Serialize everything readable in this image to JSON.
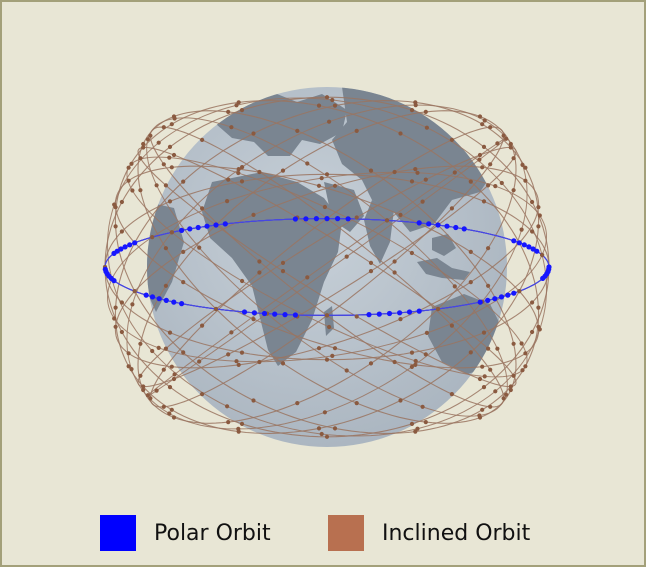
{
  "legend": {
    "polar": {
      "label": "Polar Orbit",
      "color": "#0000ff"
    },
    "inclined": {
      "label": "Inclined Orbit",
      "color": "#b87050"
    }
  },
  "colors": {
    "background": "#e8e6d5",
    "frame_border": "#a3a07a",
    "globe_ocean": "#b9c3cc",
    "globe_land": "#7a8591",
    "polar_track": "#4848e0",
    "inclined_track": "#9a7460",
    "satellite_polar": "#1616ff",
    "satellite_inclined": "#8a5a40"
  },
  "icons": [
    "earth-globe",
    "satellite-dot"
  ]
}
